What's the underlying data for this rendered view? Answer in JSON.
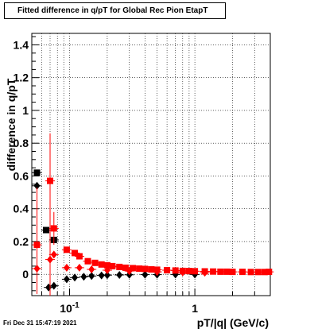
{
  "title": "Fitted difference in q/pT for Global Rec Pion EtapT",
  "timestamp": "Fri Dec 31 15:47:19 2021",
  "chart_data": {
    "type": "scatter",
    "title": "Fitted difference in q/pT for Global Rec Pion EtapT",
    "xlabel": "pT/|q| (GeV/c)",
    "ylabel": "difference in q/pT",
    "xscale": "log",
    "xlim": [
      0.05,
      4.0
    ],
    "ylim": [
      -0.13,
      1.47
    ],
    "xticks": [
      {
        "value": 0.1,
        "label": "10^-1"
      },
      {
        "value": 1,
        "label": "1"
      }
    ],
    "yticks": [
      0,
      0.2,
      0.4,
      0.6,
      0.8,
      1,
      1.2,
      1.4
    ],
    "ytick_labels": [
      "0",
      "0.2",
      "0.4",
      "0.6",
      "0.8",
      "1",
      "1.2",
      "1.4"
    ],
    "grid": true,
    "colors": {
      "black": "#000000",
      "red": "#ff0000"
    },
    "series": [
      {
        "marker": "square",
        "color": "#000000",
        "points": [
          [
            0.055,
            0.62,
            0.0,
            0.0
          ],
          [
            0.065,
            0.27,
            0.0,
            0.0
          ],
          [
            0.075,
            0.21,
            0.0,
            0.0
          ]
        ]
      },
      {
        "marker": "diamond",
        "color": "#000000",
        "points": [
          [
            0.055,
            0.54,
            0.0,
            0.0
          ],
          [
            0.068,
            -0.08,
            0.0,
            0.0
          ],
          [
            0.075,
            -0.07,
            0.0,
            0.0
          ],
          [
            0.095,
            -0.03,
            0.0,
            0.0
          ],
          [
            0.11,
            -0.02,
            0.0,
            0.0
          ],
          [
            0.13,
            -0.015,
            0.0,
            0.0
          ],
          [
            0.15,
            -0.01,
            0.0,
            0.0
          ],
          [
            0.18,
            -0.007,
            0.0,
            0.0
          ],
          [
            0.2,
            -0.005,
            0.0,
            0.0
          ],
          [
            0.25,
            -0.004,
            0.0,
            0.0
          ],
          [
            0.3,
            -0.003,
            0.0,
            0.0
          ],
          [
            0.4,
            -0.002,
            0.0,
            0.0
          ],
          [
            0.5,
            -0.002,
            0.0,
            0.0
          ],
          [
            0.7,
            -0.001,
            0.0,
            0.0
          ],
          [
            1.0,
            -0.001,
            0.0,
            0.0
          ]
        ]
      },
      {
        "marker": "square",
        "color": "#ff0000",
        "points": [
          [
            0.055,
            0.18,
            0.35,
            0.3
          ],
          [
            0.07,
            0.57,
            0.29,
            0.8
          ],
          [
            0.075,
            0.28,
            0.1,
            0.1
          ],
          [
            0.095,
            0.15,
            0.0,
            0.0
          ],
          [
            0.11,
            0.13,
            0.0,
            0.0
          ],
          [
            0.12,
            0.11,
            0.0,
            0.0
          ],
          [
            0.14,
            0.08,
            0.0,
            0.0
          ],
          [
            0.16,
            0.07,
            0.0,
            0.0
          ],
          [
            0.18,
            0.06,
            0.0,
            0.0
          ],
          [
            0.2,
            0.055,
            0.0,
            0.0
          ],
          [
            0.22,
            0.05,
            0.0,
            0.0
          ],
          [
            0.25,
            0.045,
            0.0,
            0.0
          ],
          [
            0.28,
            0.04,
            0.0,
            0.0
          ],
          [
            0.32,
            0.038,
            0.0,
            0.0
          ],
          [
            0.36,
            0.035,
            0.0,
            0.0
          ],
          [
            0.4,
            0.033,
            0.0,
            0.0
          ],
          [
            0.45,
            0.03,
            0.0,
            0.0
          ],
          [
            0.5,
            0.028,
            0.0,
            0.0
          ],
          [
            0.6,
            0.025,
            0.0,
            0.0
          ],
          [
            0.7,
            0.023,
            0.0,
            0.0
          ],
          [
            0.8,
            0.021,
            0.0,
            0.0
          ],
          [
            0.9,
            0.02,
            0.0,
            0.0
          ],
          [
            1.0,
            0.019,
            0.0,
            0.0
          ],
          [
            1.2,
            0.018,
            0.0,
            0.0
          ],
          [
            1.4,
            0.017,
            0.0,
            0.0
          ],
          [
            1.6,
            0.016,
            0.0,
            0.0
          ],
          [
            1.8,
            0.016,
            0.0,
            0.0
          ],
          [
            2.0,
            0.015,
            0.0,
            0.0
          ],
          [
            2.4,
            0.015,
            0.0,
            0.0
          ],
          [
            2.8,
            0.014,
            0.0,
            0.0
          ],
          [
            3.2,
            0.014,
            0.0,
            0.0
          ],
          [
            3.6,
            0.014,
            0.0,
            0.0
          ],
          [
            3.9,
            0.015,
            0.0,
            0.0
          ]
        ]
      },
      {
        "marker": "diamond",
        "color": "#ff0000",
        "points": [
          [
            0.055,
            0.035,
            0.0,
            0.0
          ],
          [
            0.07,
            0.09,
            0.3,
            0.15
          ],
          [
            0.075,
            0.12,
            0.0,
            0.0
          ],
          [
            0.095,
            0.04,
            0.0,
            0.0
          ],
          [
            0.12,
            0.04,
            0.0,
            0.0
          ],
          [
            0.15,
            0.03,
            0.0,
            0.0
          ],
          [
            0.2,
            0.025,
            0.0,
            0.0
          ],
          [
            0.3,
            0.02,
            0.0,
            0.0
          ],
          [
            0.5,
            0.015,
            0.0,
            0.0
          ],
          [
            0.8,
            0.012,
            0.0,
            0.0
          ],
          [
            1.2,
            0.01,
            0.0,
            0.0
          ]
        ]
      }
    ]
  }
}
